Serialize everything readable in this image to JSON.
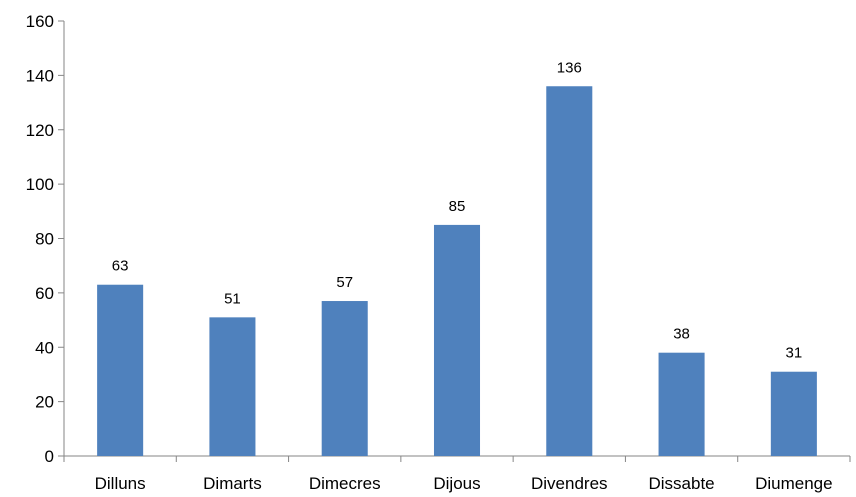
{
  "chart_data": {
    "type": "bar",
    "title": "",
    "xlabel": "",
    "ylabel": "",
    "categories": [
      "Dilluns",
      "Dimarts",
      "Dimecres",
      "Dijous",
      "Divendres",
      "Dissabte",
      "Diumenge"
    ],
    "values": [
      63,
      51,
      57,
      85,
      136,
      38,
      31
    ],
    "ylim": [
      0,
      160
    ],
    "yticks": [
      0,
      20,
      40,
      60,
      80,
      100,
      120,
      140,
      160
    ],
    "grid": false,
    "legend": "none",
    "data_labels": true,
    "colors": {
      "bar": "#4f81bd",
      "axis": "#868686",
      "text": "#000000"
    }
  }
}
